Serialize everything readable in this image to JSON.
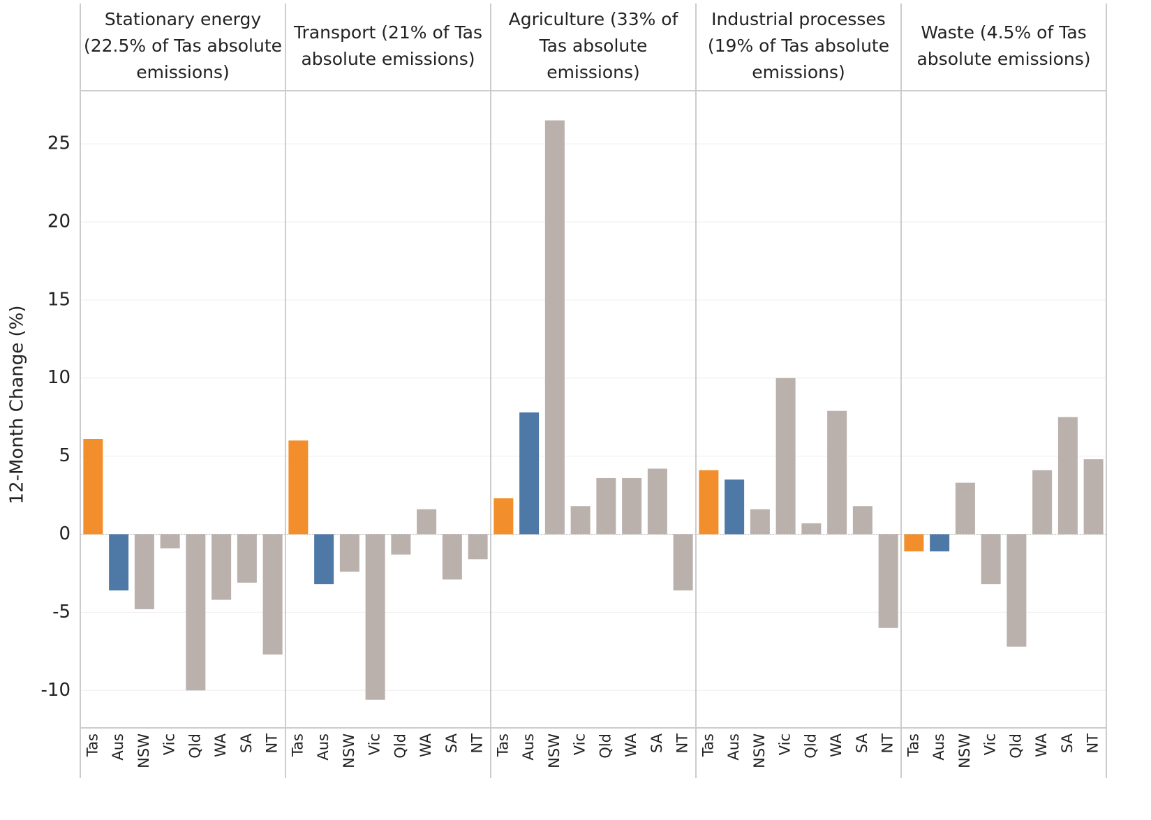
{
  "chart_data": {
    "type": "bar",
    "y_label": "12-Month Change (%)",
    "ylim": [
      -12.4,
      28.4
    ],
    "yticks": [
      -10,
      -5,
      0,
      5,
      10,
      15,
      20,
      25
    ],
    "grid": true,
    "categories": [
      "Tas",
      "Aus",
      "NSW",
      "Vic",
      "Qld",
      "WA",
      "SA",
      "NT"
    ],
    "colors": [
      "#f28e2b",
      "#4e79a7",
      "#bab0ac",
      "#bab0ac",
      "#bab0ac",
      "#bab0ac",
      "#bab0ac",
      "#bab0ac"
    ],
    "panels": [
      {
        "title": [
          "Stationary energy",
          "(22.5% of Tas absolute",
          "emissions)"
        ],
        "values": [
          6.1,
          -3.6,
          -4.8,
          -0.9,
          -10.0,
          -4.2,
          -3.1,
          -7.7
        ]
      },
      {
        "title": [
          "Transport (21% of Tas",
          "absolute emissions)"
        ],
        "values": [
          6.0,
          -3.2,
          -2.4,
          -10.6,
          -1.3,
          1.6,
          -2.9,
          -1.6
        ]
      },
      {
        "title": [
          "Agriculture (33% of",
          "Tas absolute",
          "emissions)"
        ],
        "values": [
          2.3,
          7.8,
          26.5,
          1.8,
          3.6,
          3.6,
          4.2,
          -3.6
        ]
      },
      {
        "title": [
          "Industrial processes",
          "(19% of Tas absolute",
          "emissions)"
        ],
        "values": [
          4.1,
          3.5,
          1.6,
          10.0,
          0.7,
          7.9,
          1.8,
          -6.0
        ]
      },
      {
        "title": [
          "Waste (4.5% of Tas",
          "absolute emissions)"
        ],
        "values": [
          -1.1,
          -1.1,
          3.3,
          -3.2,
          -7.2,
          4.1,
          7.5,
          4.8
        ]
      }
    ]
  }
}
